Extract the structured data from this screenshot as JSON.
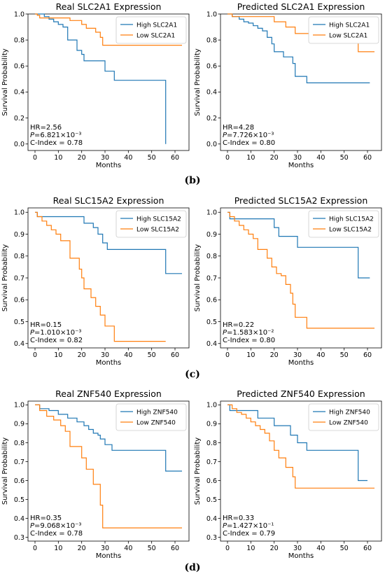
{
  "chart_data": [
    {
      "type": "line",
      "subtype": "kaplan-meier",
      "title": "Real SLC2A1 Expression",
      "xlabel": "Months",
      "ylabel": "Survival Probability",
      "xlim": [
        -3,
        66
      ],
      "ylim": [
        -0.05,
        1.0
      ],
      "xticks": [
        "0",
        "10",
        "20",
        "30",
        "40",
        "50",
        "60"
      ],
      "yticks": [
        "0.0",
        "0.2",
        "0.4",
        "0.6",
        "0.8",
        "1.0"
      ],
      "legend_position": "top-right",
      "series": [
        {
          "name": "High SLC2A1",
          "color": "#1f77b4",
          "x": [
            0,
            4,
            6,
            8,
            10,
            12,
            14,
            18,
            20,
            21,
            22,
            30,
            32,
            34,
            56,
            56
          ],
          "y": [
            1.0,
            0.98,
            0.96,
            0.94,
            0.92,
            0.9,
            0.8,
            0.72,
            0.69,
            0.64,
            0.64,
            0.56,
            0.56,
            0.49,
            0.49,
            0.0
          ]
        },
        {
          "name": "Low SLC2A1",
          "color": "#ff7f0e",
          "x": [
            0,
            1,
            2,
            15,
            20,
            22,
            26,
            28,
            29,
            63
          ],
          "y": [
            1.0,
            0.99,
            0.97,
            0.95,
            0.92,
            0.89,
            0.86,
            0.82,
            0.76,
            0.76
          ]
        }
      ],
      "annotations": [
        "HR=2.56",
        "P=6.821×10⁻³",
        "C-Index = 0.78"
      ]
    },
    {
      "type": "line",
      "subtype": "kaplan-meier",
      "title": "Predicted SLC2A1 Expression",
      "xlabel": "Months",
      "ylabel": "Survival Probability",
      "xlim": [
        -3,
        66
      ],
      "ylim": [
        -0.05,
        1.0
      ],
      "xticks": [
        "0",
        "10",
        "20",
        "30",
        "40",
        "50",
        "60"
      ],
      "yticks": [
        "0.0",
        "0.2",
        "0.4",
        "0.6",
        "0.8",
        "1.0"
      ],
      "legend_position": "top-right",
      "series": [
        {
          "name": "High SLC2A1",
          "color": "#1f77b4",
          "x": [
            0,
            2,
            5,
            7,
            9,
            11,
            13,
            15,
            17,
            19,
            20,
            22,
            24,
            26,
            28,
            29,
            31,
            34,
            61
          ],
          "y": [
            1.0,
            0.98,
            0.96,
            0.94,
            0.93,
            0.91,
            0.89,
            0.87,
            0.82,
            0.77,
            0.71,
            0.71,
            0.67,
            0.67,
            0.62,
            0.52,
            0.52,
            0.47,
            0.47
          ]
        },
        {
          "name": "Low SLC2A1",
          "color": "#ff7f0e",
          "x": [
            0,
            2,
            20,
            25,
            29,
            56,
            63
          ],
          "y": [
            1.0,
            0.98,
            0.94,
            0.9,
            0.85,
            0.71,
            0.71
          ]
        }
      ],
      "annotations": [
        "HR=4.28",
        "P=7.726×10⁻³",
        "C-Index = 0.80"
      ]
    },
    {
      "type": "line",
      "subtype": "kaplan-meier",
      "title": "Real SLC15A2 Expression",
      "xlabel": "Months",
      "ylabel": "Survival Probability",
      "xlim": [
        -3,
        66
      ],
      "ylim": [
        0.38,
        1.02
      ],
      "xticks": [
        "0",
        "10",
        "20",
        "30",
        "40",
        "50",
        "60"
      ],
      "yticks": [
        "0.4",
        "0.5",
        "0.6",
        "0.7",
        "0.8",
        "0.9",
        "1.0"
      ],
      "legend_position": "top-right",
      "series": [
        {
          "name": "High SLC15A2",
          "color": "#1f77b4",
          "x": [
            0,
            1,
            21,
            25,
            27,
            29,
            31,
            56,
            63
          ],
          "y": [
            1.0,
            0.98,
            0.95,
            0.93,
            0.9,
            0.86,
            0.83,
            0.72,
            0.72
          ]
        },
        {
          "name": "Low SLC15A2",
          "color": "#ff7f0e",
          "x": [
            0,
            1,
            3,
            5,
            7,
            9,
            11,
            13,
            15,
            19,
            20,
            21,
            22,
            24,
            26,
            28,
            30,
            34,
            56
          ],
          "y": [
            1.0,
            0.98,
            0.96,
            0.94,
            0.92,
            0.9,
            0.87,
            0.87,
            0.79,
            0.74,
            0.7,
            0.65,
            0.65,
            0.61,
            0.57,
            0.53,
            0.48,
            0.41,
            0.41
          ]
        }
      ],
      "annotations": [
        "HR=0.15",
        "P=1.010×10⁻³",
        "C-Index = 0.82"
      ]
    },
    {
      "type": "line",
      "subtype": "kaplan-meier",
      "title": "Predicted SLC15A2 Expression",
      "xlabel": "Months",
      "ylabel": "Survival Probability",
      "xlim": [
        -3,
        66
      ],
      "ylim": [
        0.38,
        1.02
      ],
      "xticks": [
        "0",
        "10",
        "20",
        "30",
        "40",
        "50",
        "60"
      ],
      "yticks": [
        "0.4",
        "0.5",
        "0.6",
        "0.7",
        "0.8",
        "0.9",
        "1.0"
      ],
      "legend_position": "top-right",
      "series": [
        {
          "name": "High SLC15A2",
          "color": "#1f77b4",
          "x": [
            0,
            1,
            20,
            22,
            30,
            56,
            61
          ],
          "y": [
            1.0,
            0.97,
            0.93,
            0.89,
            0.84,
            0.7,
            0.7
          ]
        },
        {
          "name": "Low SLC15A2",
          "color": "#ff7f0e",
          "x": [
            0,
            1,
            3,
            5,
            7,
            9,
            11,
            13,
            15,
            17,
            19,
            21,
            23,
            25,
            27,
            28,
            29,
            34,
            63
          ],
          "y": [
            1.0,
            0.98,
            0.96,
            0.94,
            0.92,
            0.9,
            0.88,
            0.83,
            0.83,
            0.79,
            0.75,
            0.72,
            0.71,
            0.67,
            0.63,
            0.58,
            0.52,
            0.47,
            0.47
          ]
        }
      ],
      "annotations": [
        "HR=0.22",
        "P=1.583×10⁻²",
        "C-Index = 0.80"
      ]
    },
    {
      "type": "line",
      "subtype": "kaplan-meier",
      "title": "Real ZNF540 Expression",
      "xlabel": "Months",
      "ylabel": "Survival Probability",
      "xlim": [
        -3,
        66
      ],
      "ylim": [
        0.28,
        1.02
      ],
      "xticks": [
        "0",
        "10",
        "20",
        "30",
        "40",
        "50",
        "60"
      ],
      "yticks": [
        "0.3",
        "0.4",
        "0.5",
        "0.6",
        "0.7",
        "0.8",
        "0.9",
        "1.0"
      ],
      "legend_position": "top-right",
      "series": [
        {
          "name": "High ZNF540",
          "color": "#1f77b4",
          "x": [
            0,
            2,
            6,
            10,
            14,
            18,
            21,
            23,
            25,
            27,
            28,
            30,
            33,
            56,
            63
          ],
          "y": [
            1.0,
            0.98,
            0.97,
            0.95,
            0.93,
            0.91,
            0.89,
            0.87,
            0.85,
            0.84,
            0.82,
            0.79,
            0.76,
            0.65,
            0.65
          ]
        },
        {
          "name": "Low ZNF540",
          "color": "#ff7f0e",
          "x": [
            0,
            2,
            5,
            8,
            11,
            13,
            15,
            20,
            22,
            25,
            28,
            29,
            63
          ],
          "y": [
            1.0,
            0.97,
            0.94,
            0.92,
            0.89,
            0.86,
            0.78,
            0.72,
            0.66,
            0.58,
            0.47,
            0.35,
            0.35
          ]
        }
      ],
      "annotations": [
        "HR=0.35",
        "P=9.068×10⁻³",
        "C-Index = 0.78"
      ]
    },
    {
      "type": "line",
      "subtype": "kaplan-meier",
      "title": "Predicted ZNF540 Expression",
      "xlabel": "Months",
      "ylabel": "Survival Probability",
      "xlim": [
        -3,
        66
      ],
      "ylim": [
        0.28,
        1.02
      ],
      "xticks": [
        "0",
        "10",
        "20",
        "30",
        "40",
        "50",
        "60"
      ],
      "yticks": [
        "0.3",
        "0.4",
        "0.5",
        "0.6",
        "0.7",
        "0.8",
        "0.9",
        "1.0"
      ],
      "legend_position": "top-right",
      "series": [
        {
          "name": "High ZNF540",
          "color": "#1f77b4",
          "x": [
            0,
            1,
            13,
            20,
            27,
            30,
            34,
            56,
            58,
            60
          ],
          "y": [
            1.0,
            0.97,
            0.93,
            0.89,
            0.84,
            0.8,
            0.76,
            0.6,
            0.6,
            0.6
          ]
        },
        {
          "name": "Low ZNF540",
          "color": "#ff7f0e",
          "x": [
            0,
            2,
            4,
            6,
            8,
            10,
            12,
            14,
            16,
            18,
            20,
            22,
            25,
            28,
            29,
            63
          ],
          "y": [
            1.0,
            0.98,
            0.96,
            0.95,
            0.93,
            0.91,
            0.89,
            0.87,
            0.85,
            0.81,
            0.76,
            0.72,
            0.67,
            0.62,
            0.56,
            0.56
          ]
        }
      ],
      "annotations": [
        "HR=0.33",
        "P=1.427×10⁻¹",
        "C-Index = 0.79"
      ]
    }
  ],
  "panel_labels": [
    "(b)",
    "(c)",
    "(d)"
  ]
}
